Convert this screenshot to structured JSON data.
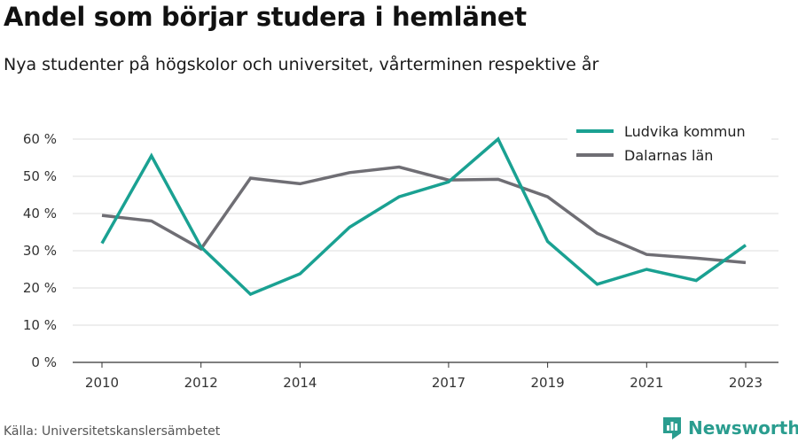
{
  "title": "Andel som börjar studera i hemlänet",
  "subtitle": "Nya studenter på högskolor och universitet, vårterminen respektive år",
  "source": "Källa: Universitetskanslersämbetet",
  "brand": {
    "name": "Newsworthy",
    "icon": "newsworthy-logo-icon",
    "color": "#2a9d8f"
  },
  "chart_data": {
    "type": "line",
    "x": [
      2010,
      2011,
      2012,
      2013,
      2014,
      2015,
      2016,
      2017,
      2018,
      2019,
      2020,
      2021,
      2022,
      2023
    ],
    "x_ticks": [
      2010,
      2012,
      2014,
      2017,
      2019,
      2021,
      2023
    ],
    "ylim": [
      0,
      60
    ],
    "y_ticks": [
      0,
      10,
      20,
      30,
      40,
      50,
      60
    ],
    "y_tick_labels": [
      "0 %",
      "10 %",
      "20 %",
      "30 %",
      "40 %",
      "50 %",
      "60 %"
    ],
    "grid": true,
    "legend_position": "top-right",
    "series": [
      {
        "name": "Ludvika kommun",
        "color": "#1aa192",
        "values": [
          32,
          55.5,
          31,
          18.3,
          23.8,
          36.3,
          44.5,
          48.5,
          60,
          32.5,
          21,
          25,
          22,
          31.5
        ]
      },
      {
        "name": "Dalarnas län",
        "color": "#6f6e74",
        "values": [
          39.5,
          38,
          30.5,
          49.5,
          48,
          51,
          52.5,
          49,
          49.2,
          44.5,
          34.7,
          29,
          28,
          26.8
        ]
      }
    ]
  }
}
